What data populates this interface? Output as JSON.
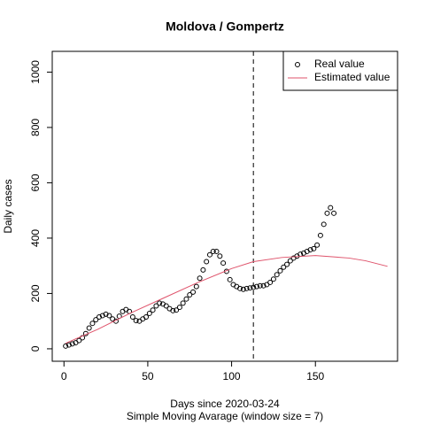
{
  "chart_data": {
    "type": "scatter",
    "title": "Moldova / Gompertz",
    "x_label": "Days since 2020-03-24",
    "subtitle": "Simple Moving Avarage (window size = 7)",
    "y_label": "Daily cases",
    "xlim": [
      -7,
      199
    ],
    "ylim": [
      -45,
      1075
    ],
    "xticks": [
      0,
      50,
      100,
      150
    ],
    "yticks": [
      0,
      200,
      400,
      600,
      800,
      1000
    ],
    "vline": 113,
    "legend": "top-right",
    "series": [
      {
        "name": "Real value",
        "color": "#000000",
        "mode": "points",
        "x": [
          1,
          3,
          5,
          7,
          9,
          11,
          13,
          15,
          17,
          19,
          21,
          23,
          25,
          27,
          29,
          31,
          33,
          35,
          37,
          39,
          41,
          43,
          45,
          47,
          49,
          51,
          53,
          55,
          57,
          59,
          61,
          63,
          65,
          67,
          69,
          71,
          73,
          75,
          77,
          79,
          81,
          83,
          85,
          87,
          89,
          91,
          93,
          95,
          97,
          99,
          101,
          103,
          105,
          107,
          109,
          111,
          113,
          115,
          117,
          119,
          121,
          123,
          125,
          127,
          129,
          131,
          133,
          135,
          137,
          139,
          141,
          143,
          145,
          147,
          149,
          151,
          153,
          155,
          157,
          159,
          161
        ],
        "values": [
          10,
          14,
          18,
          22,
          30,
          40,
          55,
          75,
          92,
          105,
          115,
          120,
          125,
          120,
          108,
          100,
          118,
          135,
          142,
          135,
          115,
          102,
          100,
          108,
          115,
          128,
          140,
          155,
          165,
          162,
          155,
          145,
          138,
          140,
          150,
          165,
          180,
          195,
          205,
          225,
          255,
          285,
          315,
          340,
          352,
          352,
          335,
          310,
          280,
          250,
          232,
          225,
          218,
          215,
          218,
          220,
          222,
          225,
          228,
          228,
          232,
          240,
          252,
          268,
          282,
          295,
          305,
          318,
          328,
          335,
          342,
          346,
          352,
          358,
          362,
          375,
          410,
          450,
          490,
          510,
          490
        ]
      },
      {
        "name": "Estimated value",
        "color": "#DF536B",
        "mode": "line",
        "x": [
          1,
          20,
          40,
          60,
          80,
          100,
          113,
          130,
          150,
          170,
          180,
          193
        ],
        "values": [
          20,
          70,
          130,
          185,
          240,
          290,
          315,
          330,
          337,
          328,
          318,
          298
        ]
      }
    ]
  }
}
